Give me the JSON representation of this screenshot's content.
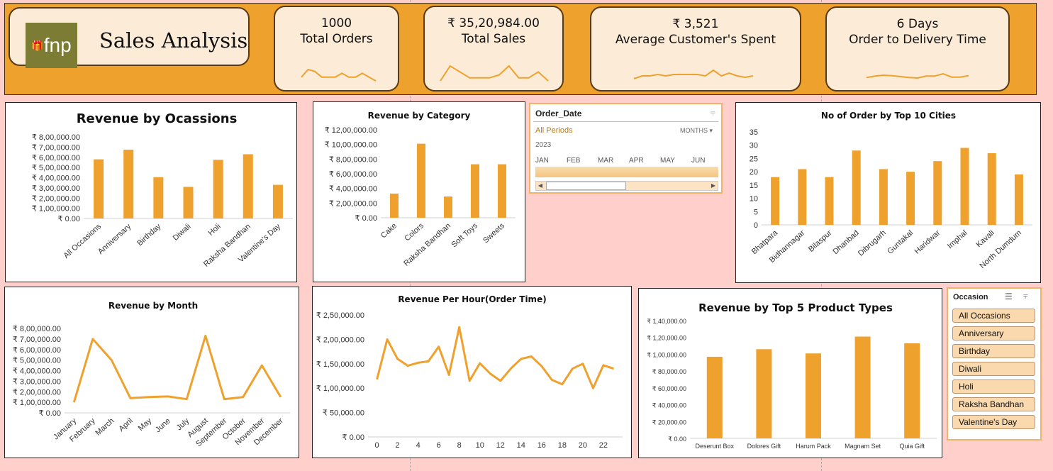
{
  "header": {
    "logo_text": "fnp",
    "title": "Sales Analysis",
    "kpis": [
      {
        "value": "1000",
        "label": "Total Orders",
        "spark": [
          2,
          6,
          5,
          2,
          2,
          2,
          4,
          2,
          2,
          4,
          2,
          0
        ]
      },
      {
        "value": "₹ 35,20,984.00",
        "label": "Total Sales",
        "spark": [
          1,
          6,
          4,
          2,
          2,
          2,
          3,
          6,
          2,
          2,
          4,
          1
        ]
      },
      {
        "value": "₹ 3,521",
        "label": "Average Customer's Spent",
        "spark": [
          2,
          3,
          3,
          3.5,
          3,
          3.5,
          3.5,
          3.5,
          3.5,
          3,
          5,
          3,
          4,
          3,
          2.5,
          3
        ]
      },
      {
        "value": "6 Days",
        "label": "Order to Delivery Time",
        "spark": [
          3,
          3.3,
          3.5,
          3.4,
          3.2,
          3,
          2.9,
          3.3,
          3.3,
          3.8,
          3.1,
          3.1,
          3.4
        ]
      }
    ]
  },
  "colors": {
    "accent": "#efa12e",
    "background": "#ffcfcc",
    "card": "#fcebd6"
  },
  "charts": [
    {
      "title": "Revenue by Ocassions",
      "type": "bar",
      "categories": [
        "All Occasions",
        "Anniversary",
        "Birthday",
        "Diwali",
        "Holi",
        "Raksha Bandhan",
        "Valentine's Day"
      ],
      "values": [
        580000,
        675000,
        405000,
        310000,
        575000,
        630000,
        330000
      ],
      "ylim": [
        0,
        800000
      ],
      "yticks": [
        "₹ 0.00",
        "₹ 1,00,000.00",
        "₹ 2,00,000.00",
        "₹ 3,00,000.00",
        "₹ 4,00,000.00",
        "₹ 5,00,000.00",
        "₹ 6,00,000.00",
        "₹ 7,00,000.00",
        "₹ 8,00,000.00"
      ]
    },
    {
      "title": "Revenue by Category",
      "type": "bar",
      "categories": [
        "Cake",
        "Colors",
        "Raksha Bandhan",
        "Soft Toys",
        "Sweets"
      ],
      "values": [
        330000,
        1010000,
        290000,
        730000,
        730000
      ],
      "ylim": [
        0,
        1200000
      ],
      "yticks": [
        "₹ 0.00",
        "₹ 2,00,000.00",
        "₹ 4,00,000.00",
        "₹ 6,00,000.00",
        "₹ 8,00,000.00",
        "₹ 10,00,000.00",
        "₹ 12,00,000.00"
      ]
    },
    {
      "title": "No of Order by Top 10 Cities",
      "type": "bar",
      "categories": [
        "Bhatpara",
        "Bidhannagar",
        "Bilaspur",
        "Dhanbad",
        "Dibrugarh",
        "Guntakal",
        "Haridwar",
        "Imphal",
        "Kavali",
        "North Dumdum"
      ],
      "values": [
        18,
        21,
        18,
        28,
        21,
        20,
        24,
        29,
        27,
        19
      ],
      "ylim": [
        0,
        35
      ],
      "yticks": [
        "0",
        "5",
        "10",
        "15",
        "20",
        "25",
        "30",
        "35"
      ]
    },
    {
      "title": "Revenue by Month",
      "type": "line",
      "categories": [
        "January",
        "February",
        "March",
        "April",
        "May",
        "June",
        "July",
        "August",
        "September",
        "October",
        "November",
        "December"
      ],
      "values": [
        100000,
        700000,
        500000,
        140000,
        150000,
        155000,
        130000,
        730000,
        130000,
        150000,
        450000,
        150000
      ],
      "ylim": [
        0,
        800000
      ],
      "yticks": [
        "₹ 0.00",
        "₹ 1,00,000.00",
        "₹ 2,00,000.00",
        "₹ 3,00,000.00",
        "₹ 4,00,000.00",
        "₹ 5,00,000.00",
        "₹ 6,00,000.00",
        "₹ 7,00,000.00",
        "₹ 8,00,000.00"
      ]
    },
    {
      "title": "Revenue Per Hour(Order Time)",
      "type": "line",
      "x": [
        0,
        1,
        2,
        3,
        4,
        5,
        6,
        7,
        8,
        9,
        10,
        11,
        12,
        13,
        14,
        15,
        16,
        17,
        18,
        19,
        20,
        21,
        22,
        23
      ],
      "values": [
        118000,
        200000,
        160000,
        146000,
        152000,
        155000,
        185000,
        127000,
        225000,
        115000,
        151000,
        130000,
        115000,
        140000,
        160000,
        165000,
        145000,
        117000,
        108000,
        140000,
        150000,
        100000,
        147000,
        140000
      ],
      "ylim": [
        0,
        250000
      ],
      "xticks": [
        "0",
        "2",
        "4",
        "6",
        "8",
        "10",
        "12",
        "14",
        "16",
        "18",
        "20",
        "22"
      ],
      "yticks": [
        "₹ 0.00",
        "₹ 50,000.00",
        "₹ 1,00,000.00",
        "₹ 1,50,000.00",
        "₹ 2,00,000.00",
        "₹ 2,50,000.00"
      ]
    },
    {
      "title": "Revenue by Top 5 Product Types",
      "type": "bar",
      "categories": [
        "Deserunt Box",
        "Dolores Gift",
        "Harum Pack",
        "Magnam Set",
        "Quia Gift"
      ],
      "values": [
        97000,
        106000,
        101000,
        121000,
        113000
      ],
      "ylim": [
        0,
        140000
      ],
      "yticks": [
        "₹ 0.00",
        "₹ 20,000.00",
        "₹ 40,000.00",
        "₹ 60,000.00",
        "₹ 80,000.00",
        "₹ 1,00,000.00",
        "₹ 1,20,000.00",
        "₹ 1,40,000.00"
      ]
    }
  ],
  "timeline": {
    "title": "Order_Date",
    "period": "All Periods",
    "granularity": "MONTHS",
    "year": "2023",
    "months": [
      "JAN",
      "FEB",
      "MAR",
      "APR",
      "MAY",
      "JUN"
    ]
  },
  "occasion_slicer": {
    "title": "Occasion",
    "items": [
      "All Occasions",
      "Anniversary",
      "Birthday",
      "Diwali",
      "Holi",
      "Raksha Bandhan",
      "Valentine's Day"
    ]
  }
}
